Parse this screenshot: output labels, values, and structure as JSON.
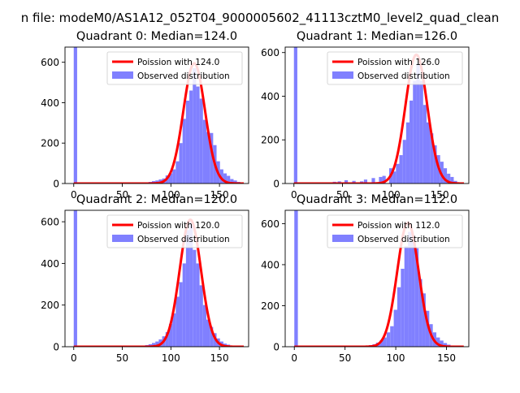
{
  "figure": {
    "suptitle": "n file: modeM0/AS1A12_052T04_9000005602_41113cztM0_level2_quad_clean"
  },
  "colors": {
    "hist": "#8080ff",
    "curve": "#ff0000",
    "axis": "#000000"
  },
  "chart_data": [
    {
      "type": "bar",
      "title": "Quadrant 0: Median=124.0",
      "median": 124.0,
      "xlim": [
        -9,
        180
      ],
      "ylim": [
        0,
        675
      ],
      "xticks": [
        0,
        50,
        100,
        150
      ],
      "yticks": [
        0,
        200,
        400,
        600
      ],
      "legend": {
        "placement": "upper right",
        "entries": [
          "Poission with 124.0",
          "Observed distribution"
        ]
      },
      "series": [
        {
          "name": "Poission with 124.0",
          "kind": "line",
          "mean": 124.0,
          "peak": 595
        },
        {
          "name": "Observed distribution",
          "kind": "histogram",
          "bin_width": 3.5,
          "bins": [
            [
              0,
              675
            ],
            [
              70,
              3
            ],
            [
              73.5,
              5
            ],
            [
              77,
              8
            ],
            [
              80.5,
              12
            ],
            [
              84,
              15
            ],
            [
              87.5,
              20
            ],
            [
              91,
              25
            ],
            [
              94.5,
              40
            ],
            [
              98,
              50
            ],
            [
              101.5,
              70
            ],
            [
              105,
              110
            ],
            [
              108.5,
              200
            ],
            [
              112,
              320
            ],
            [
              115.5,
              410
            ],
            [
              119,
              460
            ],
            [
              122.5,
              570
            ],
            [
              126,
              480
            ],
            [
              129.5,
              420
            ],
            [
              133,
              315
            ],
            [
              136.5,
              255
            ],
            [
              140,
              250
            ],
            [
              143.5,
              190
            ],
            [
              147,
              110
            ],
            [
              150.5,
              70
            ],
            [
              154,
              50
            ],
            [
              157.5,
              38
            ],
            [
              161,
              22
            ],
            [
              164.5,
              15
            ],
            [
              168,
              8
            ],
            [
              171.5,
              4
            ]
          ]
        }
      ]
    },
    {
      "type": "bar",
      "title": "Quadrant 1: Median=126.0",
      "median": 126.0,
      "xlim": [
        -9,
        180
      ],
      "ylim": [
        0,
        625
      ],
      "xticks": [
        0,
        50,
        100,
        150
      ],
      "yticks": [
        0,
        200,
        400,
        600
      ],
      "legend": {
        "placement": "upper right",
        "entries": [
          "Poission with 126.0",
          "Observed distribution"
        ]
      },
      "series": [
        {
          "name": "Poission with 126.0",
          "kind": "line",
          "mean": 126.0,
          "peak": 590
        },
        {
          "name": "Observed distribution",
          "kind": "histogram",
          "bin_width": 3.5,
          "bins": [
            [
              0,
              625
            ],
            [
              40,
              8
            ],
            [
              45,
              10
            ],
            [
              52,
              15
            ],
            [
              60,
              12
            ],
            [
              68,
              10
            ],
            [
              72,
              18
            ],
            [
              80,
              25
            ],
            [
              87.5,
              30
            ],
            [
              91,
              35
            ],
            [
              98,
              70
            ],
            [
              101.5,
              55
            ],
            [
              105,
              90
            ],
            [
              108.5,
              130
            ],
            [
              112,
              200
            ],
            [
              115.5,
              280
            ],
            [
              119,
              380
            ],
            [
              122.5,
              470
            ],
            [
              126,
              550
            ],
            [
              129.5,
              470
            ],
            [
              133,
              360
            ],
            [
              136.5,
              280
            ],
            [
              140,
              230
            ],
            [
              143.5,
              175
            ],
            [
              147,
              130
            ],
            [
              150.5,
              100
            ],
            [
              154,
              70
            ],
            [
              157.5,
              45
            ],
            [
              161,
              30
            ],
            [
              164.5,
              12
            ]
          ]
        }
      ]
    },
    {
      "type": "bar",
      "title": "Quadrant 2: Median=120.0",
      "median": 120.0,
      "xlim": [
        -9,
        180
      ],
      "ylim": [
        0,
        655
      ],
      "xticks": [
        0,
        50,
        100,
        150
      ],
      "yticks": [
        0,
        200,
        400,
        600
      ],
      "legend": {
        "placement": "upper right",
        "entries": [
          "Poission with 120.0",
          "Observed distribution"
        ]
      },
      "series": [
        {
          "name": "Poission with 120.0",
          "kind": "line",
          "mean": 120.0,
          "peak": 610
        },
        {
          "name": "Observed distribution",
          "kind": "histogram",
          "bin_width": 3.5,
          "bins": [
            [
              0,
              655
            ],
            [
              70,
              5
            ],
            [
              73.5,
              8
            ],
            [
              77,
              12
            ],
            [
              80.5,
              18
            ],
            [
              84,
              25
            ],
            [
              87.5,
              35
            ],
            [
              91,
              50
            ],
            [
              94.5,
              70
            ],
            [
              98,
              110
            ],
            [
              101.5,
              160
            ],
            [
              105,
              240
            ],
            [
              108.5,
              310
            ],
            [
              112,
              400
            ],
            [
              115.5,
              560
            ],
            [
              119,
              600
            ],
            [
              122.5,
              465
            ],
            [
              126,
              400
            ],
            [
              129.5,
              295
            ],
            [
              133,
              200
            ],
            [
              136.5,
              130
            ],
            [
              140,
              95
            ],
            [
              143.5,
              65
            ],
            [
              147,
              40
            ],
            [
              150.5,
              25
            ],
            [
              154,
              15
            ],
            [
              157.5,
              10
            ],
            [
              161,
              5
            ]
          ]
        }
      ]
    },
    {
      "type": "bar",
      "title": "Quadrant 3: Median=112.0",
      "median": 112.0,
      "xlim": [
        -9,
        172
      ],
      "ylim": [
        0,
        665
      ],
      "xticks": [
        0,
        50,
        100,
        150
      ],
      "yticks": [
        0,
        200,
        400,
        600
      ],
      "legend": {
        "placement": "upper right",
        "entries": [
          "Poission with 112.0",
          "Observed distribution"
        ]
      },
      "series": [
        {
          "name": "Poission with 112.0",
          "kind": "line",
          "mean": 112.0,
          "peak": 605
        },
        {
          "name": "Observed distribution",
          "kind": "histogram",
          "bin_width": 3.5,
          "bins": [
            [
              0,
              665
            ],
            [
              70,
              5
            ],
            [
              73.5,
              8
            ],
            [
              77,
              12
            ],
            [
              80.5,
              20
            ],
            [
              84,
              30
            ],
            [
              87.5,
              45
            ],
            [
              91,
              70
            ],
            [
              94.5,
              100
            ],
            [
              98,
              180
            ],
            [
              101.5,
              290
            ],
            [
              105,
              380
            ],
            [
              108.5,
              490
            ],
            [
              112,
              560
            ],
            [
              115.5,
              510
            ],
            [
              119,
              480
            ],
            [
              122.5,
              330
            ],
            [
              126,
              260
            ],
            [
              129.5,
              175
            ],
            [
              133,
              110
            ],
            [
              136.5,
              70
            ],
            [
              140,
              45
            ],
            [
              143.5,
              30
            ],
            [
              147,
              18
            ],
            [
              150.5,
              10
            ],
            [
              154,
              6
            ]
          ]
        }
      ]
    }
  ]
}
